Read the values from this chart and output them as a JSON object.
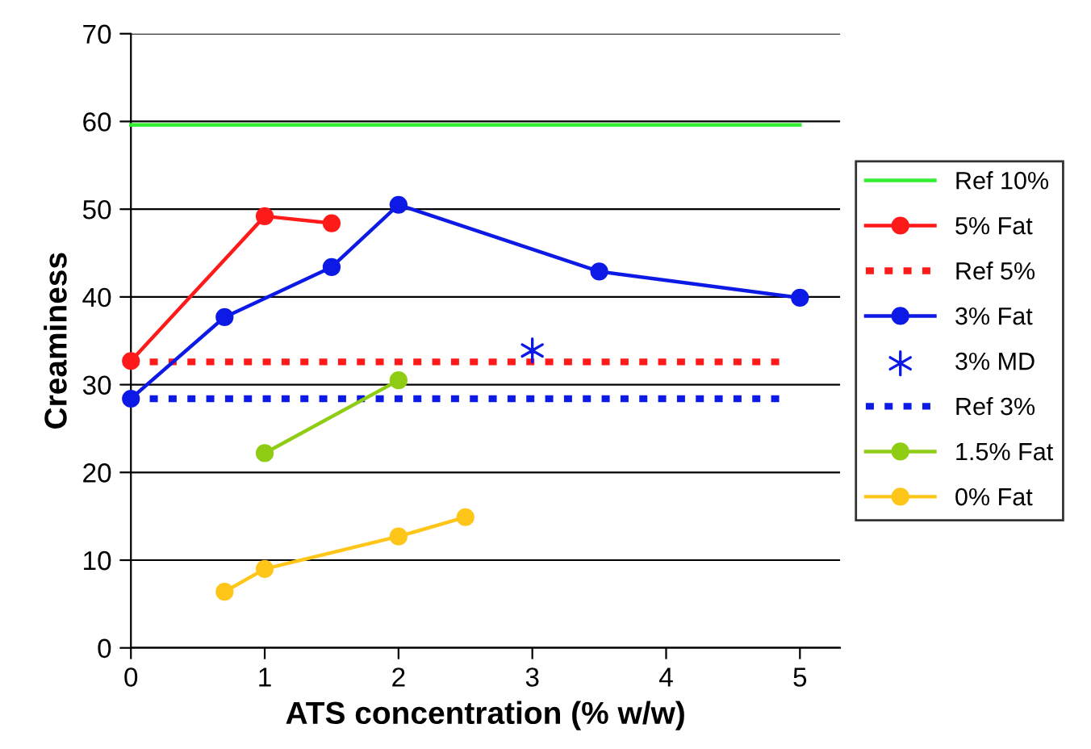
{
  "chart_data": {
    "type": "line",
    "xlabel": "ATS concentration (% w/w)",
    "ylabel": "Creaminess",
    "xlim": [
      0,
      5.3
    ],
    "xticks": [
      0,
      1,
      2,
      3,
      4,
      5
    ],
    "ylim": [
      0,
      70
    ],
    "yticks": [
      0,
      10,
      20,
      30,
      40,
      50,
      60,
      70
    ],
    "grid": "y",
    "legend": "right",
    "marker": "circle",
    "line_style": "solid",
    "series": [
      {
        "name": "Ref 10%",
        "color": "#33ee33",
        "x": [
          0,
          5
        ],
        "values": [
          59.6,
          59.6
        ],
        "marker": "none"
      },
      {
        "name": "5% Fat",
        "color": "#ff1a1a",
        "x": [
          0,
          1,
          1.5
        ],
        "values": [
          32.7,
          49.2,
          48.4
        ]
      },
      {
        "name": "Ref 5%",
        "color": "#ff1a1a",
        "x": [
          0,
          4.9
        ],
        "values": [
          32.6,
          32.6
        ],
        "marker": "none",
        "line_style": "dotted"
      },
      {
        "name": "3% Fat",
        "color": "#0d1ae6",
        "x": [
          0,
          0.7,
          1.5,
          2,
          3.5,
          5
        ],
        "values": [
          28.4,
          37.7,
          43.4,
          50.5,
          42.9,
          39.9
        ]
      },
      {
        "name": "3% MD",
        "color": "#0d1ae6",
        "type": "scatter",
        "x": [
          3
        ],
        "values": [
          33.9
        ],
        "marker": "cross"
      },
      {
        "name": "Ref 3%",
        "color": "#0d1ae6",
        "x": [
          0,
          4.9
        ],
        "values": [
          28.4,
          28.4
        ],
        "marker": "none",
        "line_style": "dotted"
      },
      {
        "name": "1.5% Fat",
        "color": "#8fcc14",
        "x": [
          1,
          2
        ],
        "values": [
          22.2,
          30.5
        ]
      },
      {
        "name": "0% Fat",
        "color": "#ffc61a",
        "x": [
          0.7,
          1,
          2,
          2.5
        ],
        "values": [
          6.4,
          9.0,
          12.7,
          14.9
        ]
      }
    ]
  }
}
